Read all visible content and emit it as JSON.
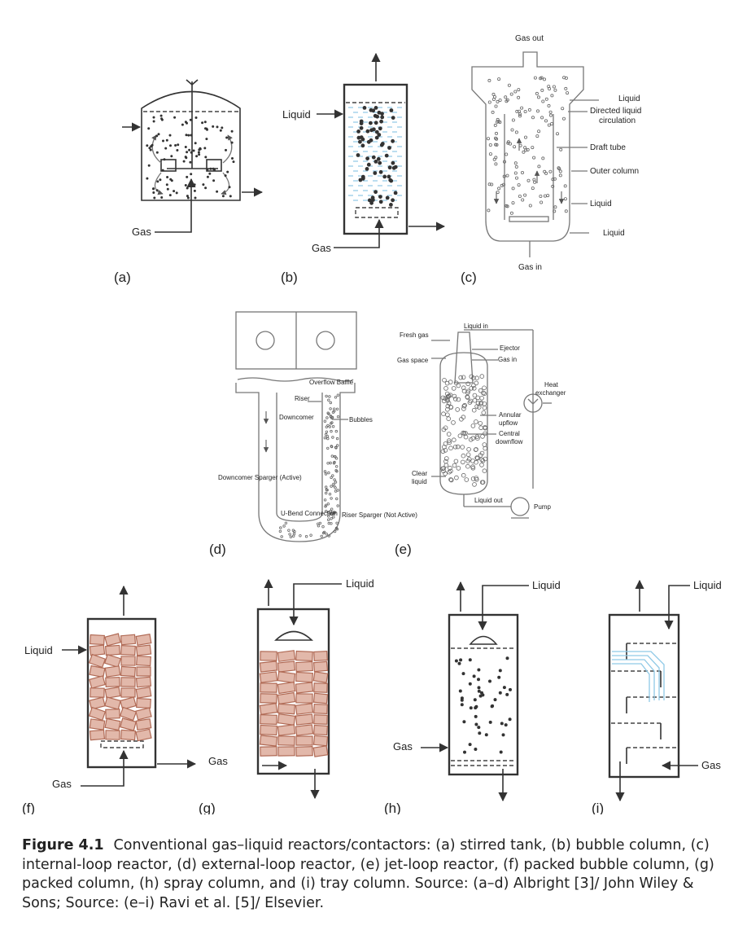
{
  "panels": {
    "a": {
      "tag": "(a)",
      "gas": "Gas"
    },
    "b": {
      "tag": "(b)",
      "liquid": "Liquid",
      "gas": "Gas"
    },
    "c": {
      "tag": "(c)",
      "gas_out": "Gas out",
      "liquid_top": "Liquid",
      "directed_1": "Directed liquid",
      "directed_2": "circulation",
      "draft_tube": "Draft tube",
      "outer_column": "Outer column",
      "liquid_mid": "Liquid",
      "liquid_bottom": "Liquid",
      "gas_in": "Gas in"
    },
    "d": {
      "tag": "(d)",
      "overflow_baffle": "Overflow Baffle",
      "riser": "Riser",
      "downcomer": "Downcomer",
      "bubbles": "Bubbles",
      "downcomer_sparger": "Downcomer Sparger (Active)",
      "u_bend": "U-Bend Connection",
      "riser_sparger": "Riser Sparger (Not Active)"
    },
    "e": {
      "tag": "(e)",
      "liquid_in": "Liquid in",
      "fresh_gas": "Fresh gas",
      "ejector": "Ejector",
      "gas_space": "Gas space",
      "gas_in": "Gas in",
      "heat_1": "Heat",
      "heat_2": "exchanger",
      "annular_1": "Annular",
      "annular_2": "upflow",
      "central_1": "Central",
      "central_2": "downflow",
      "clear_1": "Clear",
      "clear_2": "liquid",
      "liquid_out": "Liquid out",
      "pump": "Pump"
    },
    "f": {
      "tag": "(f)",
      "liquid": "Liquid",
      "gas_right": "Gas",
      "gas_bottom": "Gas"
    },
    "g": {
      "tag": "(g)",
      "liquid": "Liquid"
    },
    "h": {
      "tag": "(h)",
      "liquid": "Liquid",
      "gas": "Gas"
    },
    "i": {
      "tag": "(i)",
      "liquid": "Liquid",
      "gas": "Gas"
    }
  },
  "caption": {
    "label": "Figure 4.1",
    "text": "Conventional gas–liquid reactors/contactors: (a) stirred tank, (b) bubble column, (c) internal-loop reactor, (d) external-loop reactor, (e) jet-loop reactor, (f) packed bubble column, (g) packed column, (h) spray column, and (i) tray column. Source: (a–d) Albright [3]/ John Wiley & Sons; Source: (e–i) Ravi et al. [5]/ Elsevier."
  },
  "colors": {
    "brick_fill": "#e2b8aa",
    "brick_stroke": "#b06a55",
    "liquid_blue": "#8fc9e6"
  }
}
